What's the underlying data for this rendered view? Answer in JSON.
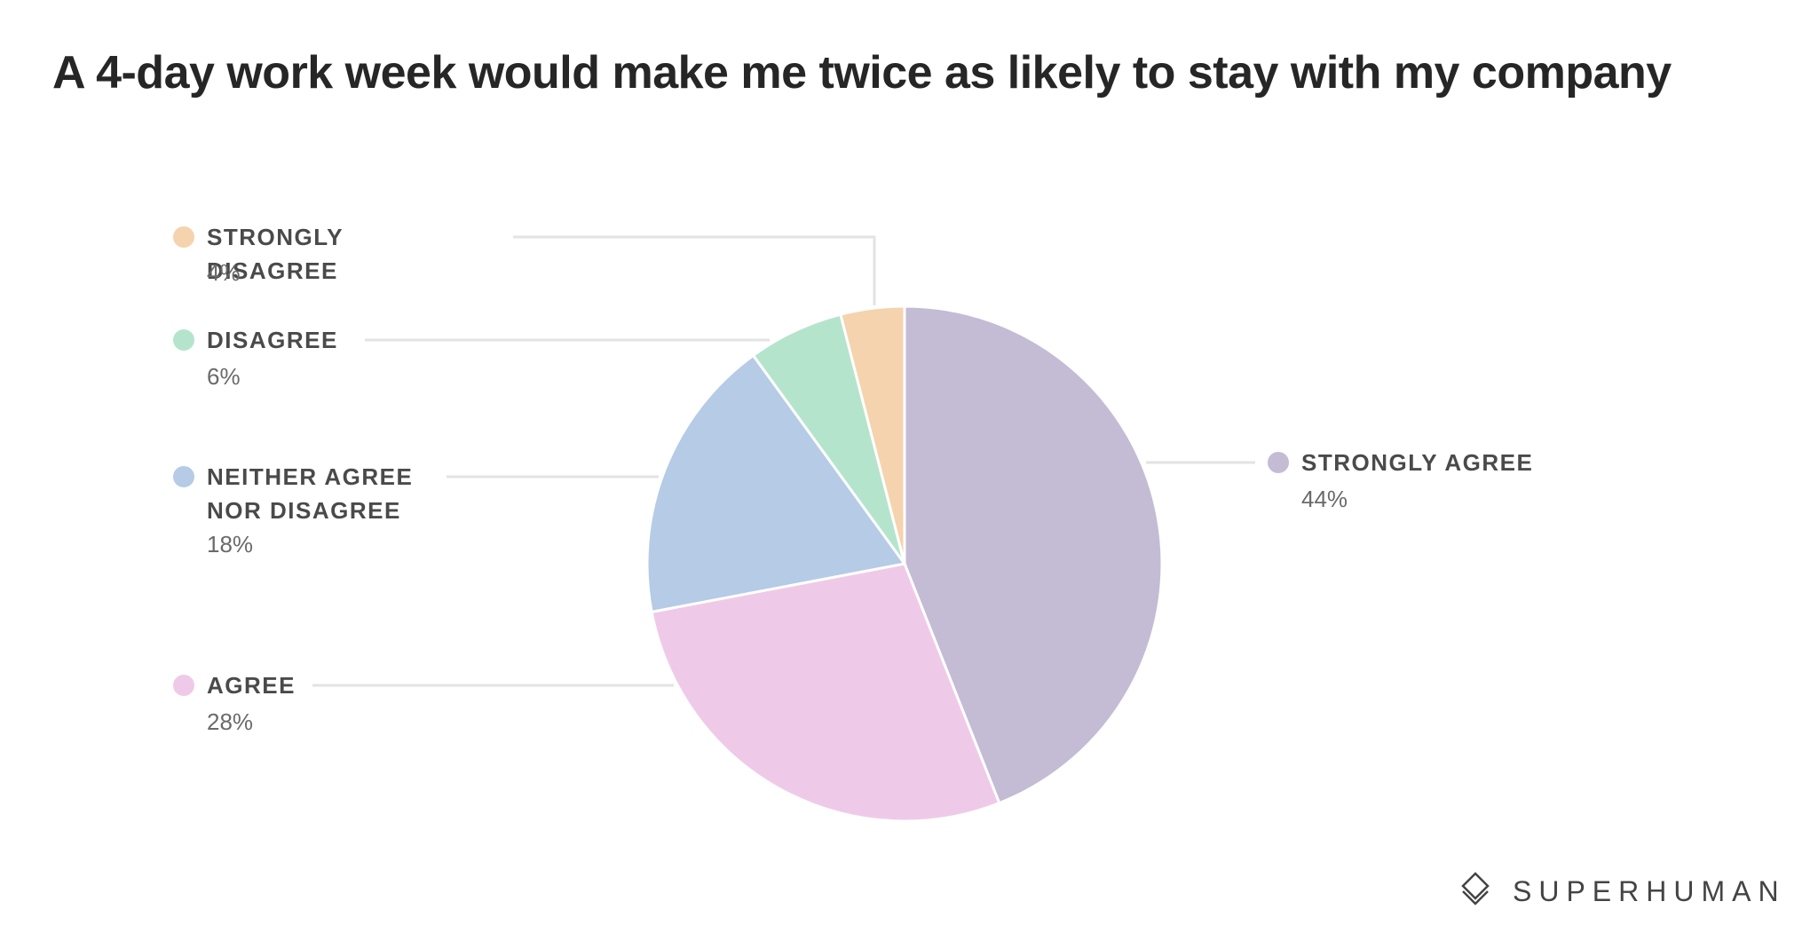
{
  "chart_data": {
    "type": "pie",
    "title": "A 4-day work week would make me twice as likely to stay with my company",
    "categories": [
      "STRONGLY AGREE",
      "AGREE",
      "NEITHER AGREE NOR DISAGREE",
      "DISAGREE",
      "STRONGLY DISAGREE"
    ],
    "values": [
      44,
      28,
      18,
      6,
      4
    ],
    "value_labels": [
      "44%",
      "28%",
      "18%",
      "6%",
      "4%"
    ],
    "colors": [
      "#c4bbd4",
      "#efcae8",
      "#b5cbe6",
      "#b5e4cd",
      "#f5d3ae"
    ],
    "brand": "SUPERHUMAN"
  }
}
